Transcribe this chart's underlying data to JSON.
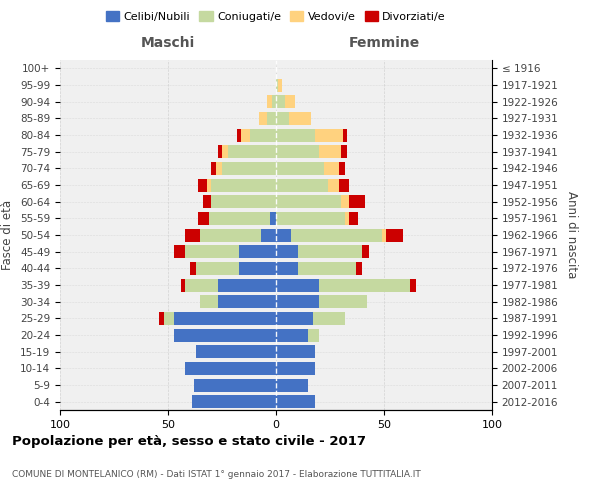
{
  "age_groups": [
    "0-4",
    "5-9",
    "10-14",
    "15-19",
    "20-24",
    "25-29",
    "30-34",
    "35-39",
    "40-44",
    "45-49",
    "50-54",
    "55-59",
    "60-64",
    "65-69",
    "70-74",
    "75-79",
    "80-84",
    "85-89",
    "90-94",
    "95-99",
    "100+"
  ],
  "birth_years": [
    "2012-2016",
    "2007-2011",
    "2002-2006",
    "1997-2001",
    "1992-1996",
    "1987-1991",
    "1982-1986",
    "1977-1981",
    "1972-1976",
    "1967-1971",
    "1962-1966",
    "1957-1961",
    "1952-1956",
    "1947-1951",
    "1942-1946",
    "1937-1941",
    "1932-1936",
    "1927-1931",
    "1922-1926",
    "1917-1921",
    "≤ 1916"
  ],
  "maschi": {
    "celibi": [
      39,
      38,
      42,
      37,
      47,
      47,
      27,
      27,
      17,
      17,
      7,
      3,
      0,
      0,
      0,
      0,
      0,
      0,
      0,
      0,
      0
    ],
    "coniugati": [
      0,
      0,
      0,
      0,
      0,
      5,
      8,
      15,
      20,
      25,
      28,
      28,
      30,
      30,
      25,
      22,
      12,
      4,
      2,
      0,
      0
    ],
    "vedovi": [
      0,
      0,
      0,
      0,
      0,
      0,
      0,
      0,
      0,
      0,
      0,
      0,
      0,
      2,
      3,
      3,
      4,
      4,
      2,
      0,
      0
    ],
    "divorziati": [
      0,
      0,
      0,
      0,
      0,
      2,
      0,
      2,
      3,
      5,
      7,
      5,
      4,
      4,
      2,
      2,
      2,
      0,
      0,
      0,
      0
    ]
  },
  "femmine": {
    "nubili": [
      18,
      15,
      18,
      18,
      15,
      17,
      20,
      20,
      10,
      10,
      7,
      0,
      0,
      0,
      0,
      0,
      0,
      0,
      0,
      0,
      0
    ],
    "coniugate": [
      0,
      0,
      0,
      0,
      5,
      15,
      22,
      42,
      27,
      30,
      42,
      32,
      30,
      24,
      22,
      20,
      18,
      6,
      4,
      1,
      0
    ],
    "vedove": [
      0,
      0,
      0,
      0,
      0,
      0,
      0,
      0,
      0,
      0,
      2,
      2,
      4,
      5,
      7,
      10,
      13,
      10,
      5,
      2,
      0
    ],
    "divorziate": [
      0,
      0,
      0,
      0,
      0,
      0,
      0,
      3,
      3,
      3,
      8,
      4,
      7,
      5,
      3,
      3,
      2,
      0,
      0,
      0,
      0
    ]
  },
  "colors": {
    "celibi": "#4472c4",
    "coniugati": "#c5d9a0",
    "vedovi": "#ffd27f",
    "divorziati": "#cc0000"
  },
  "legend_labels": [
    "Celibi/Nubili",
    "Coniugati/e",
    "Vedovi/e",
    "Divorziati/e"
  ],
  "legend_colors": [
    "#4472c4",
    "#c5d9a0",
    "#ffd27f",
    "#cc0000"
  ],
  "title": "Popolazione per età, sesso e stato civile - 2017",
  "subtitle": "COMUNE DI MONTELANICO (RM) - Dati ISTAT 1° gennaio 2017 - Elaborazione TUTTITALIA.IT",
  "ylabel_left": "Fasce di età",
  "ylabel_right": "Anni di nascita",
  "xlabel_left": "Maschi",
  "xlabel_right": "Femmine",
  "xlim": 100,
  "bg_color": "#f0f0f0",
  "grid_color": "#cccccc"
}
